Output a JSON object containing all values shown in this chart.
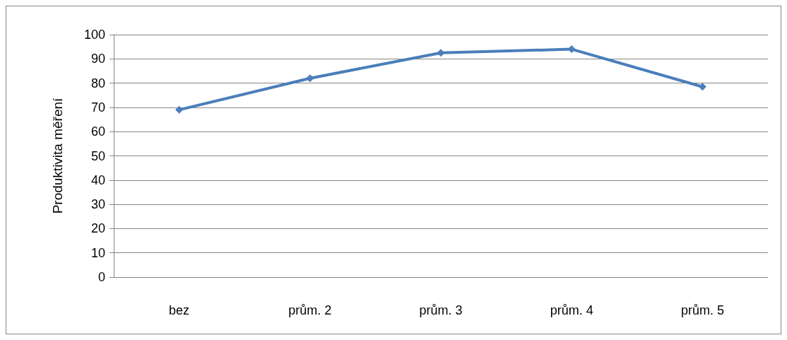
{
  "chart_data": {
    "type": "line",
    "ylabel": "Produktivita měření",
    "categories": [
      "bez",
      "prům. 2",
      "prům. 3",
      "prům. 4",
      "prům. 5"
    ],
    "series": [
      {
        "color": "#4a7ebb",
        "values": [
          69,
          82,
          92.5,
          94,
          78.5
        ]
      }
    ],
    "ylim": [
      0,
      100
    ],
    "yticks": [
      0,
      10,
      20,
      30,
      40,
      50,
      60,
      70,
      80,
      90,
      100
    ],
    "grid": "y",
    "marker": "diamond",
    "line_style": "solid"
  }
}
